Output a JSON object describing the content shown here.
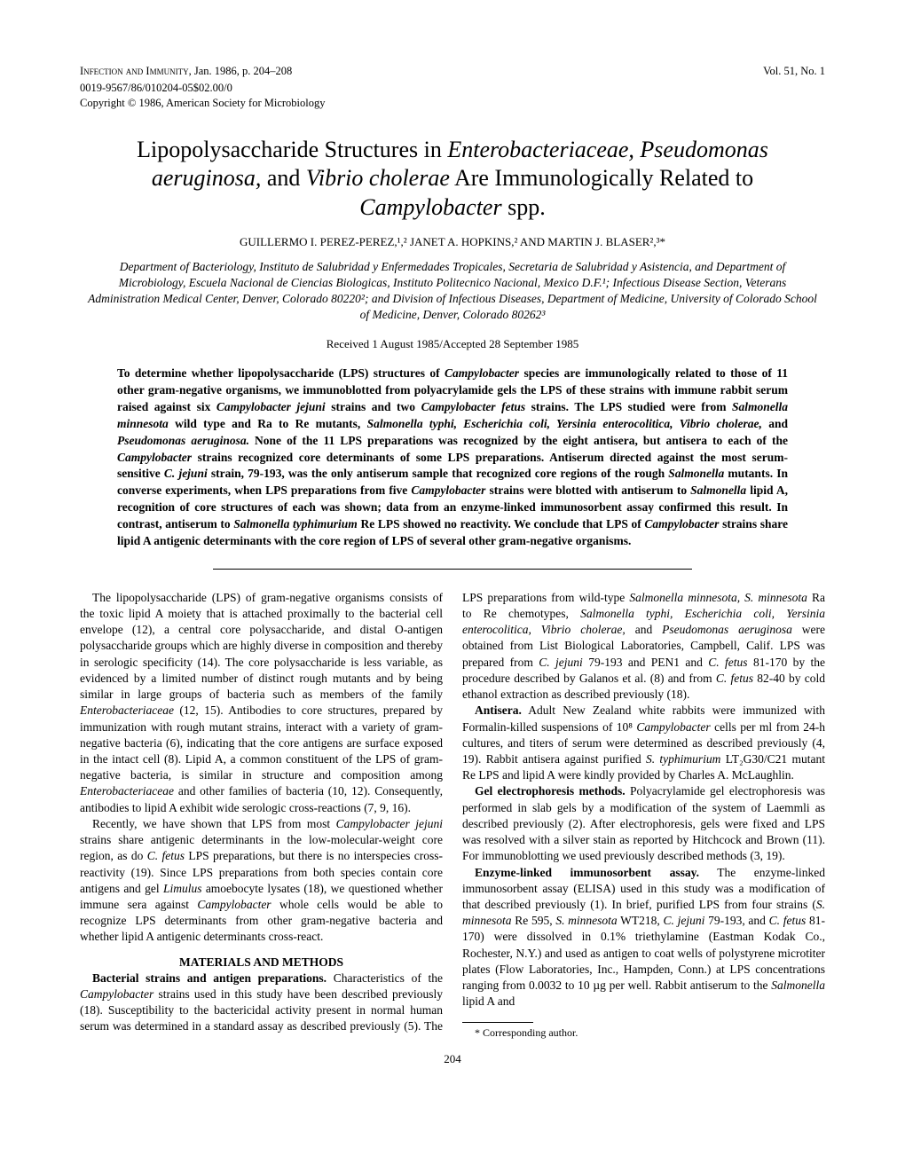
{
  "header": {
    "journal": "Infection and Immunity,",
    "date": "Jan. 1986, p. 204–208",
    "issn": "0019-9567/86/010204-05$02.00/0",
    "copyright": "Copyright © 1986, American Society for Microbiology",
    "volume": "Vol. 51, No. 1"
  },
  "title": {
    "line1_a": "Lipopolysaccharide Structures in ",
    "line1_b": "Enterobacteriaceae, Pseudomonas aeruginosa,",
    "line1_c": " and ",
    "line1_d": "Vibrio cholerae",
    "line1_e": " Are Immunologically Related to ",
    "line1_f": "Campylobacter",
    "line1_g": " spp."
  },
  "authors": "GUILLERMO I. PEREZ-PEREZ,¹,² JANET A. HOPKINS,² AND MARTIN J. BLASER²,³*",
  "affiliations": "Department of Bacteriology, Instituto de Salubridad y Enfermedades Tropicales, Secretaria de Salubridad y Asistencia, and Department of Microbiology, Escuela Nacional de Ciencias Biologicas, Instituto Politecnico Nacional, Mexico D.F.¹; Infectious Disease Section, Veterans Administration Medical Center, Denver, Colorado 80220²; and Division of Infectious Diseases, Department of Medicine, University of Colorado School of Medicine, Denver, Colorado 80262³",
  "received": "Received 1 August 1985/Accepted 28 September 1985",
  "abstract": {
    "p1a": "To determine whether lipopolysaccharide (LPS) structures of ",
    "p1b": "Campylobacter",
    "p1c": " species are immunologically related to those of 11 other gram-negative organisms, we immunoblotted from polyacrylamide gels the LPS of these strains with immune rabbit serum raised against six ",
    "p1d": "Campylobacter jejuni",
    "p1e": " strains and two ",
    "p1f": "Campylobacter fetus",
    "p1g": " strains. The LPS studied were from ",
    "p1h": "Salmonella minnesota",
    "p1i": " wild type and Ra to Re mutants, ",
    "p1j": "Salmonella typhi, Escherichia coli, Yersinia enterocolitica, Vibrio cholerae,",
    "p1k": " and ",
    "p1l": "Pseudomonas aeruginosa.",
    "p1m": " None of the 11 LPS preparations was recognized by the eight antisera, but antisera to each of the ",
    "p1n": "Campylobacter",
    "p1o": " strains recognized core determinants of some LPS preparations. Antiserum directed against the most serum-sensitive ",
    "p1p": "C. jejuni",
    "p1q": " strain, 79-193, was the only antiserum sample that recognized core regions of the rough ",
    "p1r": "Salmonella",
    "p1s": " mutants. In converse experiments, when LPS preparations from five ",
    "p1t": "Campylobacter",
    "p1u": " strains were blotted with antiserum to ",
    "p1v": "Salmonella",
    "p1w": " lipid A, recognition of core structures of each was shown; data from an enzyme-linked immunosorbent assay confirmed this result. In contrast, antiserum to ",
    "p1x": "Salmonella typhimurium",
    "p1y": " Re LPS showed no reactivity. We conclude that LPS of ",
    "p1z": "Campylobacter",
    "p1aa": " strains share lipid A antigenic determinants with the core region of LPS of several other gram-negative organisms."
  },
  "body": {
    "p1a": "The lipopolysaccharide (LPS) of gram-negative organisms consists of the toxic lipid A moiety that is attached proximally to the bacterial cell envelope (12), a central core polysaccharide, and distal O-antigen polysaccharide groups which are highly diverse in composition and thereby in serologic specificity (14). The core polysaccharide is less variable, as evidenced by a limited number of distinct rough mutants and by being similar in large groups of bacteria such as members of the family ",
    "p1b": "Enterobacteriaceae",
    "p1c": " (12, 15). Antibodies to core structures, prepared by immunization with rough mutant strains, interact with a variety of gram-negative bacteria (6), indicating that the core antigens are surface exposed in the intact cell (8). Lipid A, a common constituent of the LPS of gram-negative bacteria, is similar in structure and composition among ",
    "p1d": "Enterobacteriaceae",
    "p1e": " and other families of bacteria (10, 12). Consequently, antibodies to lipid A exhibit wide serologic cross-reactions (7, 9, 16).",
    "p2a": "Recently, we have shown that LPS from most ",
    "p2b": "Campylobacter jejuni",
    "p2c": " strains share antigenic determinants in the low-molecular-weight core region, as do ",
    "p2d": "C. fetus",
    "p2e": " LPS preparations, but there is no interspecies cross-reactivity (19). Since LPS preparations from both species contain core antigens and gel ",
    "p2f": "Limulus",
    "p2g": " amoebocyte lysates (18), we questioned whether immune sera against ",
    "p2h": "Campylobacter",
    "p2i": " whole cells would be able to recognize LPS determinants from other gram-negative bacteria and whether lipid A antigenic determinants cross-react.",
    "mm_head": "MATERIALS AND METHODS",
    "p3a": "Bacterial strains and antigen preparations.",
    "p3b": " Characteristics of the ",
    "p3c": "Campylobacter",
    "p3d": " strains used in this study have been ",
    "p3e": "described previously (18). Susceptibility to the bactericidal activity present in normal human serum was determined in a standard assay as described previously (5). The LPS preparations from wild-type ",
    "p3f": "Salmonella minnesota, S. minnesota",
    "p3g": " Ra to Re chemotypes, ",
    "p3h": "Salmonella typhi, Escherichia coli, Yersinia enterocolitica, Vibrio cholerae,",
    "p3i": " and ",
    "p3j": "Pseudomonas aeruginosa",
    "p3k": " were obtained from List Biological Laboratories, Campbell, Calif. LPS was prepared from ",
    "p3l": "C. jejuni",
    "p3m": " 79-193 and PEN1 and ",
    "p3n": "C. fetus",
    "p3o": " 81-170 by the procedure described by Galanos et al. (8) and from ",
    "p3p": "C. fetus",
    "p3q": " 82-40 by cold ethanol extraction as described previously (18).",
    "p4a": "Antisera.",
    "p4b": " Adult New Zealand white rabbits were immunized with Formalin-killed suspensions of 10⁸ ",
    "p4c": "Campylobacter",
    "p4d": " cells per ml from 24-h cultures, and titers of serum were determined as described previously (4, 19). Rabbit antisera against purified ",
    "p4e": "S. typhimurium",
    "p4f": " LT₂G30/C21 mutant Re LPS and lipid A were kindly provided by Charles A. McLaughlin.",
    "p5a": "Gel electrophoresis methods.",
    "p5b": " Polyacrylamide gel electrophoresis was performed in slab gels by a modification of the system of Laemmli as described previously (2). After electrophoresis, gels were fixed and LPS was resolved with a silver stain as reported by Hitchcock and Brown (11). For immunoblotting we used previously described methods (3, 19).",
    "p6a": "Enzyme-linked immunosorbent assay.",
    "p6b": " The enzyme-linked immunosorbent assay (ELISA) used in this study was a modification of that described previously (1). In brief, purified LPS from four strains (",
    "p6c": "S. minnesota",
    "p6d": " Re 595, ",
    "p6e": "S. minnesota",
    "p6f": " WT218, ",
    "p6g": "C. jejuni",
    "p6h": " 79-193, and ",
    "p6i": "C. fetus",
    "p6j": " 81-170) were dissolved in 0.1% triethylamine (Eastman Kodak Co., Rochester, N.Y.) and used as antigen to coat wells of polystyrene microtiter plates (Flow Laboratories, Inc., Hampden, Conn.) at LPS concentrations ranging from 0.0032 to 10 µg per well. Rabbit antiserum to the ",
    "p6k": "Salmonella",
    "p6l": " lipid A and"
  },
  "footnote": "* Corresponding author.",
  "page_number": "204"
}
